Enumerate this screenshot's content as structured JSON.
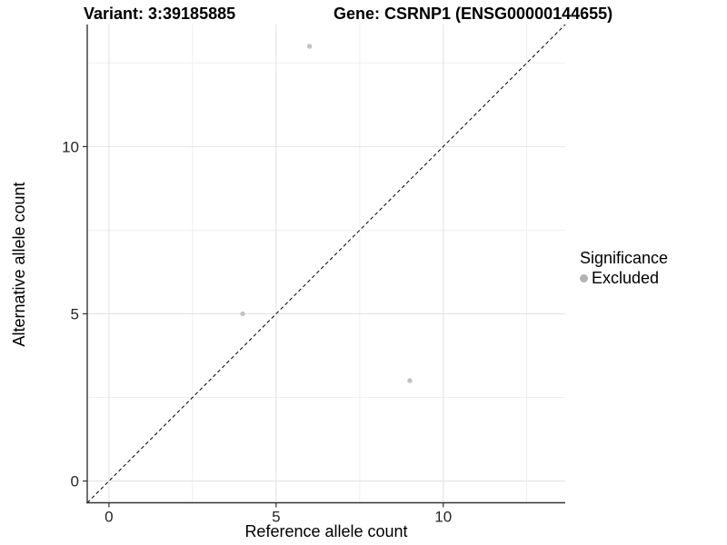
{
  "figure": {
    "title_left": "Variant: 3:39185885",
    "title_right": "Gene: CSRNP1 (ENSG00000144655)"
  },
  "chart_data": {
    "type": "scatter",
    "title_left": "Variant: 3:39185885",
    "title_right": "Gene: CSRNP1 (ENSG00000144655)",
    "xlabel": "Reference allele count",
    "ylabel": "Alternative allele count",
    "xlim": [
      -0.65,
      13.65
    ],
    "ylim": [
      -0.65,
      13.65
    ],
    "x_ticks": [
      0,
      5,
      10
    ],
    "y_ticks": [
      0,
      5,
      10
    ],
    "x_minor_gridlines": [
      2.5,
      7.5,
      12.5
    ],
    "y_minor_gridlines": [
      2.5,
      7.5,
      12.5
    ],
    "grid": true,
    "series": [
      {
        "name": "Excluded",
        "significance": "Excluded",
        "color": "#c2c2c2",
        "points": [
          {
            "x": 6,
            "y": 13
          },
          {
            "x": 4,
            "y": 5
          },
          {
            "x": 9,
            "y": 3
          }
        ]
      }
    ],
    "reference_line": {
      "kind": "identity",
      "slope": 1,
      "intercept": 0,
      "style": "dashed",
      "color": "#000000"
    },
    "legend": {
      "position": "right",
      "title": "Significance",
      "items": [
        {
          "label": "Excluded",
          "color": "#b3b3b3"
        }
      ]
    },
    "colors": {
      "background": "#ffffff",
      "axis_line": "#333333",
      "tick_text": "#262626",
      "grid_major": "#e4e4e4",
      "grid_minor": "#efefef",
      "point": "#c2c2c2"
    }
  }
}
